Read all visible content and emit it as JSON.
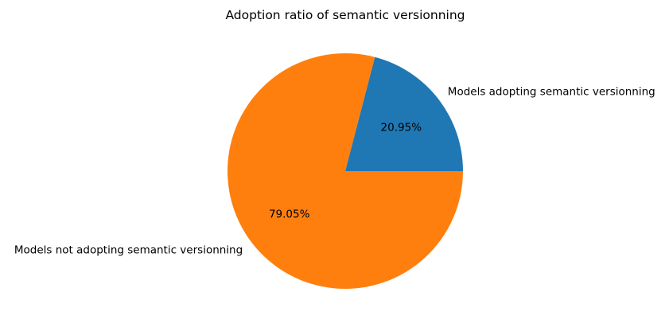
{
  "chart_data": {
    "type": "pie",
    "title": "Adoption ratio of semantic versionning",
    "start_angle_deg": 0,
    "direction": "counterclockwise",
    "slices": [
      {
        "label": "Models adopting semantic versionning",
        "value": 20.95,
        "pct_label": "20.95%",
        "color": "#1f77b4"
      },
      {
        "label": "Models not adopting semantic versionning",
        "value": 79.05,
        "pct_label": "79.05%",
        "color": "#ff7f0e"
      }
    ]
  }
}
